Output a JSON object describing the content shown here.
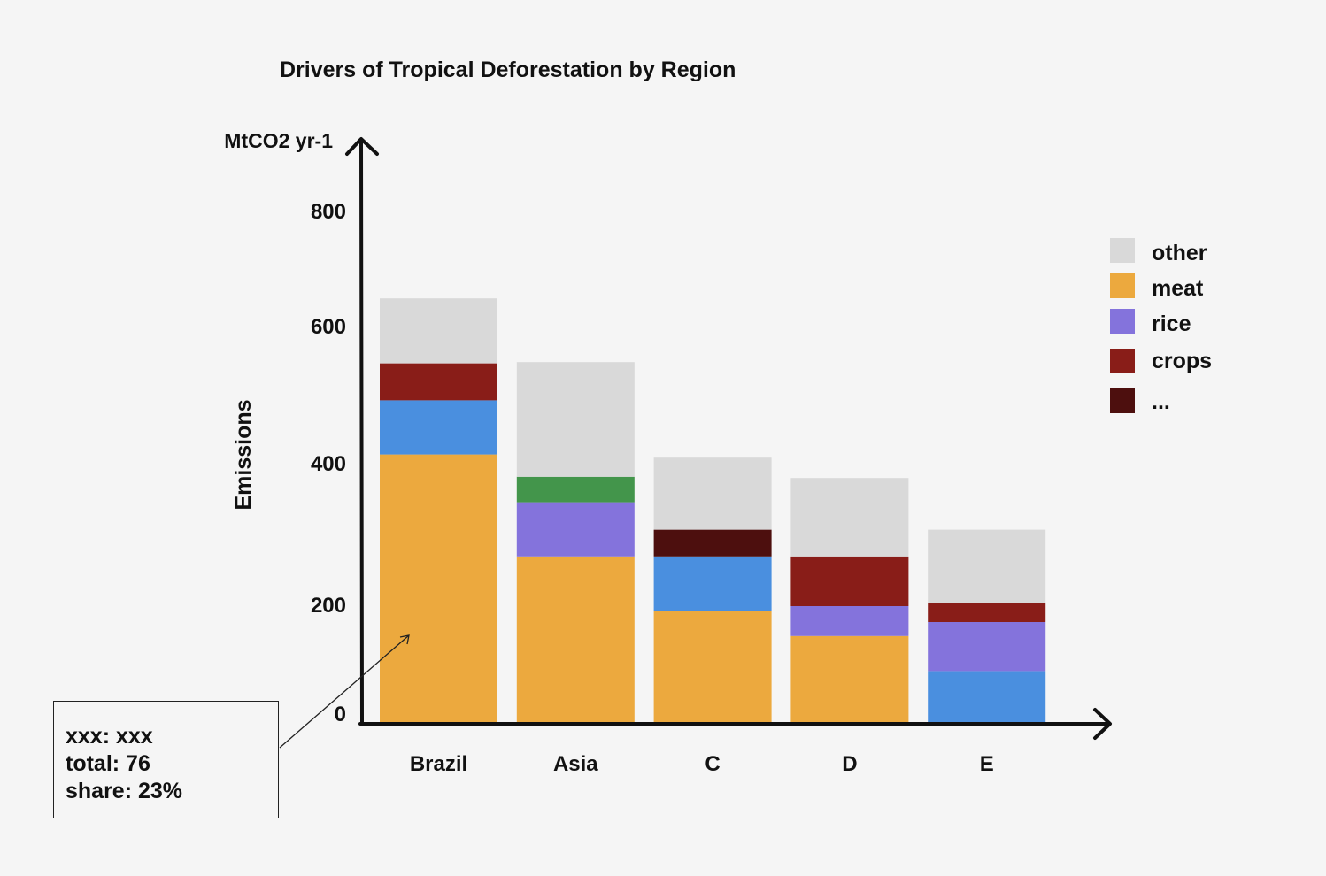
{
  "chart_data": {
    "type": "bar",
    "stacked": true,
    "title": "Drivers of Tropical Deforestation by Region",
    "xlabel": "",
    "ylabel": "Emissions",
    "yunit": "MtCO2 yr-1",
    "yticks": [
      0,
      200,
      400,
      600,
      800
    ],
    "ylim": [
      0,
      900
    ],
    "grid": false,
    "legend_position": "right",
    "categories": [
      "Brazil",
      "Asia",
      "C",
      "D",
      "E"
    ],
    "series": [
      {
        "name": "meat",
        "color": "#eca93e",
        "values": [
          420,
          260,
          175,
          135,
          0
        ]
      },
      {
        "name": "",
        "color": "#4a8fdf",
        "values": [
          85,
          0,
          85,
          0,
          80
        ]
      },
      {
        "name": "rice",
        "color": "#8473dc",
        "values": [
          0,
          85,
          0,
          47,
          77
        ]
      },
      {
        "name": "crops",
        "color": "#891d18",
        "values": [
          58,
          0,
          0,
          78,
          30
        ]
      },
      {
        "name": "",
        "color": "#43954b",
        "values": [
          0,
          40,
          0,
          0,
          0
        ]
      },
      {
        "name": "...",
        "color": "#4d0f0e",
        "values": [
          0,
          0,
          42,
          0,
          0
        ]
      },
      {
        "name": "other",
        "color": "#d9d9d9",
        "values": [
          102,
          180,
          113,
          123,
          115
        ]
      }
    ],
    "legend": [
      {
        "label": "other",
        "color": "#d9d9d9"
      },
      {
        "label": "meat",
        "color": "#eca93e"
      },
      {
        "label": "rice",
        "color": "#8473dc"
      },
      {
        "label": "crops",
        "color": "#891d18"
      },
      {
        "label": "...",
        "color": "#4d0f0e"
      }
    ],
    "annotation": {
      "lines": [
        "xxx: xxx",
        "total: 76",
        "share: 23%"
      ],
      "target_category": "Brazil",
      "target_series": "meat"
    }
  }
}
